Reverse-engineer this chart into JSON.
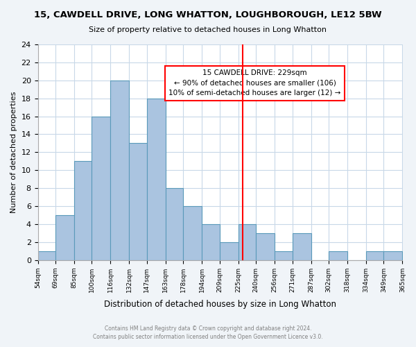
{
  "title": "15, CAWDELL DRIVE, LONG WHATTON, LOUGHBOROUGH, LE12 5BW",
  "subtitle": "Size of property relative to detached houses in Long Whatton",
  "xlabel": "Distribution of detached houses by size in Long Whatton",
  "ylabel": "Number of detached properties",
  "bin_labels": [
    "54sqm",
    "69sqm",
    "85sqm",
    "100sqm",
    "116sqm",
    "132sqm",
    "147sqm",
    "163sqm",
    "178sqm",
    "194sqm",
    "209sqm",
    "225sqm",
    "240sqm",
    "256sqm",
    "271sqm",
    "287sqm",
    "302sqm",
    "318sqm",
    "334sqm",
    "349sqm",
    "365sqm"
  ],
  "bin_edges": [
    54,
    69,
    85,
    100,
    116,
    132,
    147,
    163,
    178,
    194,
    209,
    225,
    240,
    256,
    271,
    287,
    302,
    318,
    334,
    349,
    365
  ],
  "counts": [
    1,
    5,
    11,
    16,
    20,
    13,
    18,
    8,
    6,
    4,
    2,
    4,
    3,
    1,
    3,
    0,
    1,
    0,
    1,
    1
  ],
  "bar_color": "#aac4e0",
  "bar_edge_color": "#5a9aba",
  "vline_x": 229,
  "vline_color": "red",
  "annotation_title": "15 CAWDELL DRIVE: 229sqm",
  "annotation_line1": "← 90% of detached houses are smaller (106)",
  "annotation_line2": "10% of semi-detached houses are larger (12) →",
  "annotation_box_color": "white",
  "annotation_box_edge": "red",
  "ylim": [
    0,
    24
  ],
  "yticks": [
    0,
    2,
    4,
    6,
    8,
    10,
    12,
    14,
    16,
    18,
    20,
    22,
    24
  ],
  "footer1": "Contains HM Land Registry data © Crown copyright and database right 2024.",
  "footer2": "Contains public sector information licensed under the Open Government Licence v3.0.",
  "bg_color": "#f0f4f8",
  "plot_bg_color": "white",
  "grid_color": "#c8d8e8"
}
